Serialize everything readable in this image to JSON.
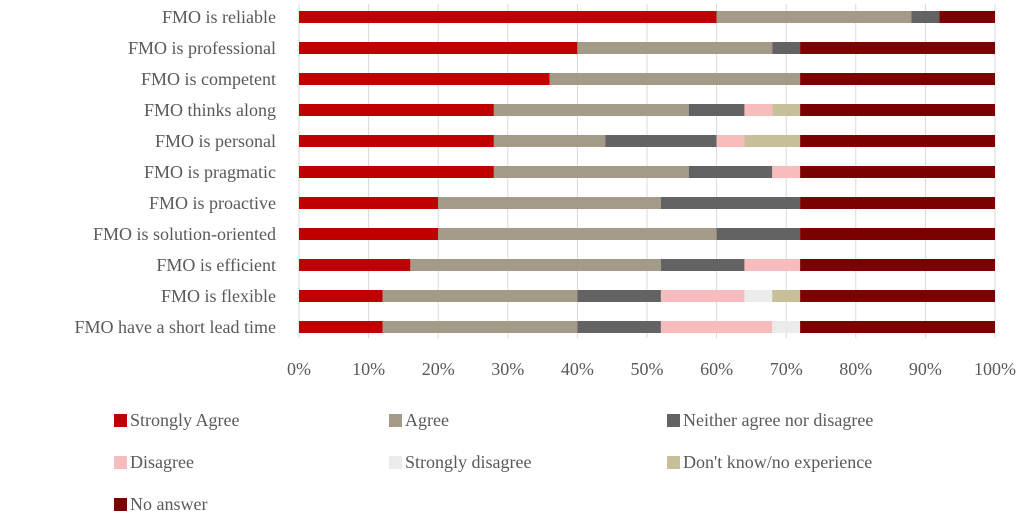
{
  "chart_data": {
    "type": "bar",
    "orientation": "horizontal",
    "stacked": true,
    "percent": true,
    "categories": [
      "FMO is reliable",
      "FMO is professional",
      "FMO is competent",
      "FMO thinks along",
      "FMO is personal",
      "FMO is pragmatic",
      "FMO is proactive",
      "FMO is solution-oriented",
      "FMO is efficient",
      "FMO is flexible",
      "FMO have a short lead time"
    ],
    "series": [
      {
        "name": "Strongly Agree",
        "color": "#c00000",
        "values": [
          60,
          40,
          36,
          28,
          28,
          28,
          20,
          20,
          16,
          12,
          12
        ]
      },
      {
        "name": "Agree",
        "color": "#a39a88",
        "values": [
          28,
          28,
          36,
          28,
          16,
          28,
          32,
          40,
          36,
          28,
          28
        ]
      },
      {
        "name": "Neither agree nor disagree",
        "color": "#636363",
        "values": [
          4,
          4,
          0,
          8,
          16,
          12,
          20,
          12,
          12,
          12,
          12
        ]
      },
      {
        "name": "Disagree",
        "color": "#f8bcbc",
        "values": [
          0,
          0,
          0,
          4,
          4,
          4,
          0,
          0,
          8,
          12,
          16
        ]
      },
      {
        "name": "Strongly disagree",
        "color": "#ebebeb",
        "values": [
          0,
          0,
          0,
          0,
          0,
          0,
          0,
          0,
          0,
          4,
          4
        ]
      },
      {
        "name": "Don't know/no experience",
        "color": "#c7be9a",
        "values": [
          0,
          0,
          0,
          4,
          8,
          0,
          0,
          0,
          0,
          4,
          0
        ]
      },
      {
        "name": "No answer",
        "color": "#7b0000",
        "values": [
          8,
          28,
          28,
          28,
          28,
          28,
          28,
          28,
          28,
          28,
          28
        ]
      }
    ],
    "xlim": [
      0,
      100
    ],
    "xticks": [
      "0%",
      "10%",
      "20%",
      "30%",
      "40%",
      "50%",
      "60%",
      "70%",
      "80%",
      "90%",
      "100%"
    ],
    "grid": true,
    "legend": "bottom",
    "title": "",
    "xlabel": "",
    "ylabel": ""
  }
}
